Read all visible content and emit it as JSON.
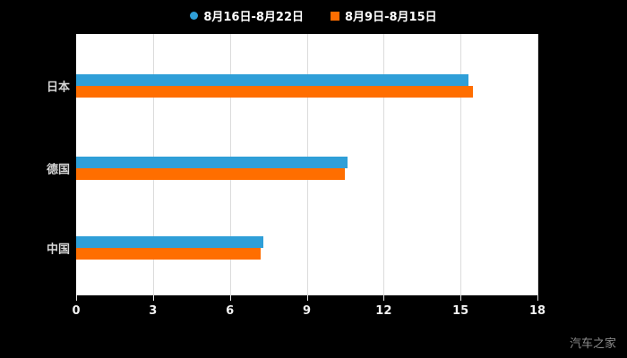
{
  "watermark": "汽车之家",
  "chart_data": {
    "type": "bar",
    "orientation": "horizontal",
    "title": "",
    "categories": [
      "日本",
      "德国",
      "中国"
    ],
    "series": [
      {
        "name": "8月16日-8月22日",
        "marker": "circle",
        "color": "#2f9fd8",
        "values": [
          15.3,
          10.6,
          7.3
        ]
      },
      {
        "name": "8月9日-8月15日",
        "marker": "square",
        "color": "#ff6e00",
        "values": [
          15.5,
          10.5,
          7.2
        ]
      }
    ],
    "xlim": [
      0,
      18
    ],
    "xticks": [
      0,
      3,
      6,
      9,
      12,
      15,
      18
    ],
    "grid": true,
    "legend_position": "top",
    "plot_background": "#ffffff",
    "page_background": "#000000"
  }
}
